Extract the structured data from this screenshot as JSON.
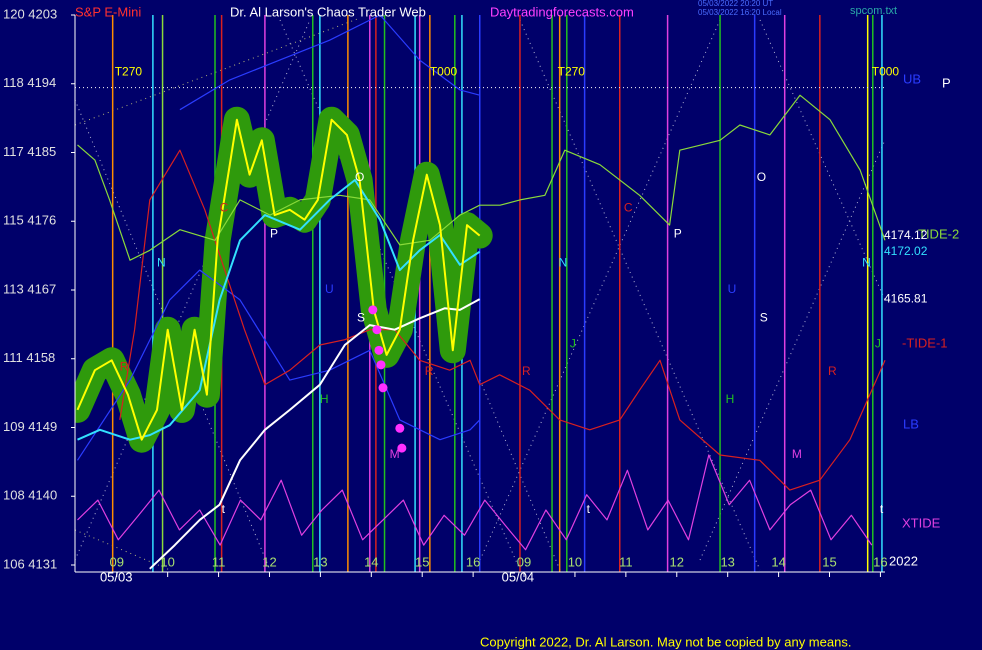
{
  "chart_data": {
    "type": "line",
    "title": "Dr. Al Larson's Chaos Trader Web",
    "symbol": "S&P E-Mini",
    "site": "Daytradingforecasts.com",
    "file": "spcom.txt",
    "timestamps": [
      "05/03/2022 20:20 UT",
      "05/03/2022 16:20 Local"
    ],
    "copyright": "Copyright 2022, Dr. Al Larson. May not be copied by any means.",
    "right_marker": "P",
    "year": "2022",
    "background": "#00006a",
    "halo_color": "#2f9a0c",
    "xlim": [
      -0.82,
      15.09
    ],
    "ylim": [
      4131,
      4203
    ],
    "yticks": [
      {
        "value": 4131,
        "label": "106 4131"
      },
      {
        "value": 4140,
        "label": "108 4140"
      },
      {
        "value": 4149,
        "label": "109 4149"
      },
      {
        "value": 4158,
        "label": "111 4158"
      },
      {
        "value": 4167,
        "label": "113 4167"
      },
      {
        "value": 4176,
        "label": "115 4176"
      },
      {
        "value": 4185,
        "label": "117 4185"
      },
      {
        "value": 4194,
        "label": "118 4194"
      },
      {
        "value": 4203,
        "label": "120 4203"
      }
    ],
    "xticks": [
      {
        "value": 0,
        "label": "09"
      },
      {
        "value": 1,
        "label": "10"
      },
      {
        "value": 2,
        "label": "11"
      },
      {
        "value": 3,
        "label": "12"
      },
      {
        "value": 4,
        "label": "13"
      },
      {
        "value": 5,
        "label": "14"
      },
      {
        "value": 6,
        "label": "15"
      },
      {
        "value": 7,
        "label": "16"
      },
      {
        "value": 8,
        "label": "09"
      },
      {
        "value": 9,
        "label": "10"
      },
      {
        "value": 10,
        "label": "11"
      },
      {
        "value": 11,
        "label": "12"
      },
      {
        "value": 12,
        "label": "13"
      },
      {
        "value": 13,
        "label": "14"
      },
      {
        "value": 14,
        "label": "15"
      },
      {
        "value": 15,
        "label": "16"
      }
    ],
    "date_labels": [
      {
        "text": "05/03",
        "x": -0.33
      },
      {
        "text": "05/04",
        "x": 7.56
      }
    ],
    "grid": false,
    "hline": 4193.5,
    "series": [
      {
        "color": "#ffff00",
        "halo": true,
        "x": [
          -0.77,
          -0.43,
          -0.1,
          0.22,
          0.49,
          0.79,
          1.0,
          1.28,
          1.53,
          1.77,
          1.98,
          2.22,
          2.36,
          2.61,
          2.85,
          3.1,
          3.4,
          3.69,
          3.95,
          4.22,
          4.52,
          4.77,
          5.05,
          5.3,
          5.56,
          5.82,
          6.09,
          6.35,
          6.6,
          6.88,
          7.13
        ],
        "values": [
          4151.3,
          4156.5,
          4157.8,
          4153.3,
          4147.4,
          4151.3,
          4161.8,
          4151.3,
          4161.8,
          4153.3,
          4173.5,
          4183.4,
          4189.3,
          4182.1,
          4186.6,
          4176.8,
          4177.5,
          4176.2,
          4178.8,
          4189.3,
          4187.3,
          4181.4,
          4164.4,
          4158.5,
          4161.8,
          4173.5,
          4182.1,
          4175.5,
          4159.1,
          4175.5,
          4174.12
        ]
      },
      {
        "color": "#33e0ff",
        "x": [
          -0.77,
          -0.33,
          0.26,
          0.65,
          1.04,
          1.63,
          2.02,
          2.42,
          2.91,
          3.6,
          4.18,
          4.68,
          5.17,
          5.56,
          5.95,
          6.35,
          6.74,
          7.13
        ],
        "values": [
          4147.4,
          4148.7,
          4147.4,
          4148.0,
          4149.3,
          4153.9,
          4165.7,
          4173.5,
          4176.8,
          4174.9,
          4178.8,
          4181.4,
          4176.2,
          4169.6,
          4172.2,
          4174.2,
          4170.3,
          4172.02
        ]
      },
      {
        "color": "#ffffff",
        "x": [
          0.65,
          1.14,
          1.63,
          2.02,
          2.42,
          2.91,
          3.4,
          3.99,
          4.48,
          4.97,
          5.46,
          5.95,
          6.44,
          6.74,
          7.13
        ],
        "values": [
          4130.5,
          4133.6,
          4136.9,
          4138.9,
          4144.7,
          4148.7,
          4151.3,
          4154.6,
          4159.8,
          4162.4,
          4161.8,
          4163.3,
          4164.6,
          4164.4,
          4165.81
        ]
      },
      {
        "name": "UB",
        "color": "#2a3cff",
        "x": [
          1.24,
          2.22,
          3.2,
          4.18,
          5.17,
          5.95,
          6.74,
          7.13
        ],
        "values": [
          4190.6,
          4194.5,
          4197.1,
          4199.7,
          4203.0,
          4197.1,
          4193.2,
          4192.5
        ]
      },
      {
        "name": "TIDE-2",
        "color": "#8ada3a",
        "x": [
          -0.77,
          -0.43,
          -0.14,
          0.26,
          0.65,
          1.24,
          1.93,
          2.42,
          3.01,
          3.6,
          4.38,
          4.97,
          5.56,
          6.15,
          6.74,
          7.13,
          7.53,
          7.92,
          8.41,
          8.8,
          9.49,
          10.27,
          10.86,
          11.06,
          11.85,
          12.24,
          12.83,
          13.42,
          14.01,
          14.6,
          15.09
        ],
        "values": [
          4186.0,
          4184.0,
          4178.8,
          4170.9,
          4172.2,
          4174.9,
          4173.5,
          4178.8,
          4176.8,
          4178.8,
          4179.4,
          4178.8,
          4172.9,
          4173.5,
          4176.8,
          4178.1,
          4178.1,
          4178.8,
          4179.4,
          4185.3,
          4183.4,
          4179.4,
          4175.5,
          4185.3,
          4186.6,
          4188.6,
          4187.3,
          4192.5,
          4189.3,
          4182.7,
          4173.5
        ]
      },
      {
        "name": "-TIDE-1",
        "color": "#d82020",
        "x": [
          0.06,
          0.35,
          0.65,
          1.24,
          1.73,
          2.12,
          2.51,
          2.91,
          3.4,
          3.99,
          4.48,
          4.97,
          5.46,
          5.95,
          6.54,
          6.94,
          7.13,
          7.52,
          8.11,
          8.7,
          9.29,
          9.88,
          10.27,
          10.67,
          11.06,
          11.85,
          12.63,
          13.22,
          13.81,
          14.4,
          15.09
        ],
        "values": [
          4150.0,
          4161.8,
          4178.8,
          4185.3,
          4177.5,
          4169.6,
          4161.8,
          4154.6,
          4156.5,
          4159.8,
          4160.5,
          4161.8,
          4161.8,
          4157.8,
          4156.5,
          4157.8,
          4154.6,
          4155.9,
          4153.9,
          4150.0,
          4148.7,
          4150.0,
          4153.9,
          4157.8,
          4150.0,
          4145.4,
          4144.7,
          4140.8,
          4142.1,
          4147.4,
          4157.8
        ]
      },
      {
        "name": "LB",
        "color": "#2a3cff",
        "x": [
          -0.77,
          0.26,
          1.04,
          1.63,
          2.42,
          3.4,
          4.18,
          4.97,
          5.56,
          6.35,
          6.94,
          7.13
        ],
        "values": [
          4144.7,
          4155.2,
          4165.7,
          4169.6,
          4165.7,
          4155.2,
          4156.5,
          4159.1,
          4150.0,
          4147.4,
          4148.7,
          4150.0
        ]
      },
      {
        "name": "XTIDE",
        "color": "#e040e0",
        "x": [
          -0.77,
          -0.37,
          0.03,
          0.43,
          0.83,
          1.23,
          1.63,
          2.03,
          2.43,
          2.83,
          3.23,
          3.63,
          4.03,
          4.43,
          4.83,
          5.23,
          5.63,
          6.03,
          6.43,
          6.83,
          7.23,
          7.63,
          8.03,
          8.43,
          8.83,
          9.23,
          9.63,
          10.03,
          10.43,
          10.83,
          11.23,
          11.63,
          12.03,
          12.43,
          12.83,
          13.23,
          13.63,
          14.03,
          14.43,
          14.83
        ],
        "values": [
          4136.9,
          4139.5,
          4134.3,
          4137.5,
          4140.8,
          4135.6,
          4138.2,
          4133.6,
          4139.5,
          4136.9,
          4142.1,
          4134.9,
          4138.2,
          4140.8,
          4134.3,
          4136.9,
          4139.5,
          4133.6,
          4137.5,
          4134.9,
          4139.5,
          4136.2,
          4133.0,
          4138.2,
          4134.3,
          4140.2,
          4136.9,
          4143.4,
          4135.6,
          4139.5,
          4134.3,
          4145.4,
          4138.9,
          4142.1,
          4135.6,
          4138.9,
          4140.8,
          4134.3,
          4137.5,
          4133.6
        ]
      }
    ],
    "last_values": [
      4174.12,
      4172.02,
      4165.81
    ],
    "last_value_colors": [
      "#ffffff",
      "#33e0ff",
      "#ffffff"
    ],
    "dots": {
      "color": "#ff30ff",
      "x": [
        5.03,
        5.11,
        5.15,
        5.19,
        5.23,
        5.56,
        5.6
      ],
      "values": [
        4164.4,
        4161.8,
        4159.1,
        4157.2,
        4154.2,
        4148.9,
        4146.3
      ]
    },
    "vlines": [
      {
        "x": -0.08,
        "color": "#ff8c00"
      },
      {
        "x": 0.71,
        "color": "#33e0ff"
      },
      {
        "x": 0.9,
        "color": "#8ada3a"
      },
      {
        "x": 1.93,
        "color": "#20c020"
      },
      {
        "x": 2.06,
        "color": "#d82020"
      },
      {
        "x": 2.91,
        "color": "#e040e0"
      },
      {
        "x": 3.85,
        "color": "#20c020"
      },
      {
        "x": 3.99,
        "color": "#33e0ff"
      },
      {
        "x": 4.54,
        "color": "#ff8c00"
      },
      {
        "x": 4.97,
        "color": "#e040e0"
      },
      {
        "x": 5.09,
        "color": "#d82020"
      },
      {
        "x": 5.26,
        "color": "#20c020"
      },
      {
        "x": 5.86,
        "color": "#33e0ff"
      },
      {
        "x": 5.95,
        "color": "#e040e0"
      },
      {
        "x": 6.15,
        "color": "#ff8c00"
      },
      {
        "x": 6.64,
        "color": "#20c020"
      },
      {
        "x": 6.78,
        "color": "#33e0ff"
      },
      {
        "x": 7.13,
        "color": "#2a3cff"
      },
      {
        "x": 7.92,
        "color": "#d82020"
      },
      {
        "x": 8.55,
        "color": "#20c020"
      },
      {
        "x": 8.7,
        "color": "#ff8c00"
      },
      {
        "x": 8.84,
        "color": "#20c020"
      },
      {
        "x": 9.19,
        "color": "#2a3cff"
      },
      {
        "x": 9.88,
        "color": "#d82020"
      },
      {
        "x": 10.82,
        "color": "#e040e0"
      },
      {
        "x": 11.85,
        "color": "#20c020"
      },
      {
        "x": 12.53,
        "color": "#2a3cff"
      },
      {
        "x": 13.12,
        "color": "#e040e0"
      },
      {
        "x": 13.81,
        "color": "#d82020"
      },
      {
        "x": 14.75,
        "color": "#ffff00"
      },
      {
        "x": 14.85,
        "color": "#20c020"
      },
      {
        "x": 15.03,
        "color": "#33e0ff"
      }
    ],
    "annotations": [
      {
        "text": "T270",
        "x": -0.04,
        "y": 4195.5,
        "color": "#ffff00"
      },
      {
        "text": "T000",
        "x": 6.15,
        "y": 4195.5,
        "color": "#ffff00"
      },
      {
        "text": "T270",
        "x": 8.66,
        "y": 4195.5,
        "color": "#ffff00"
      },
      {
        "text": "T000",
        "x": 14.83,
        "y": 4195.5,
        "color": "#ffff00"
      },
      {
        "text": "N",
        "x": 0.79,
        "y": 4170.5,
        "color": "#33e0ff"
      },
      {
        "text": "N",
        "x": 8.68,
        "y": 4170.5,
        "color": "#33e0ff"
      },
      {
        "text": "N",
        "x": 14.64,
        "y": 4170.5,
        "color": "#33e0ff"
      },
      {
        "text": "J",
        "x": 8.9,
        "y": 4159.9,
        "color": "#20c020"
      },
      {
        "text": "J",
        "x": 14.89,
        "y": 4159.9,
        "color": "#20c020"
      },
      {
        "text": "H",
        "x": 3.99,
        "y": 4152.6,
        "color": "#20c020"
      },
      {
        "text": "H",
        "x": 11.96,
        "y": 4152.6,
        "color": "#20c020"
      },
      {
        "text": "M",
        "x": 5.36,
        "y": 4145.4,
        "color": "#e040e0"
      },
      {
        "text": "M",
        "x": 13.26,
        "y": 4145.4,
        "color": "#e040e0"
      },
      {
        "text": "C",
        "x": 2.02,
        "y": 4177.7,
        "color": "#d82020"
      },
      {
        "text": "C",
        "x": 9.96,
        "y": 4177.7,
        "color": "#d82020"
      },
      {
        "text": "P",
        "x": 3.01,
        "y": 4174.3,
        "color": "#ffffff"
      },
      {
        "text": "P",
        "x": 10.94,
        "y": 4174.3,
        "color": "#ffffff"
      },
      {
        "text": "O",
        "x": 4.68,
        "y": 4181.7,
        "color": "#ffffff"
      },
      {
        "text": "O",
        "x": 12.57,
        "y": 4181.7,
        "color": "#ffffff"
      },
      {
        "text": "U",
        "x": 4.09,
        "y": 4167.0,
        "color": "#2a3cff"
      },
      {
        "text": "U",
        "x": 12.0,
        "y": 4167.0,
        "color": "#2a3cff"
      },
      {
        "text": "S",
        "x": 4.72,
        "y": 4163.3,
        "color": "#ffffff"
      },
      {
        "text": "S",
        "x": 12.63,
        "y": 4163.3,
        "color": "#ffffff"
      },
      {
        "text": "R",
        "x": 0.06,
        "y": 4156.9,
        "color": "#d82020"
      },
      {
        "text": "R",
        "x": 6.05,
        "y": 4156.3,
        "color": "#d82020"
      },
      {
        "text": "R",
        "x": 7.96,
        "y": 4156.3,
        "color": "#d82020"
      },
      {
        "text": "R",
        "x": 13.97,
        "y": 4156.3,
        "color": "#d82020"
      },
      {
        "text": "t",
        "x": 2.06,
        "y": 4138.2,
        "color": "#ffffff"
      },
      {
        "text": "t",
        "x": 9.23,
        "y": 4138.2,
        "color": "#ffffff"
      },
      {
        "text": "t",
        "x": 14.99,
        "y": 4138.2,
        "color": "#ffffff"
      }
    ]
  }
}
